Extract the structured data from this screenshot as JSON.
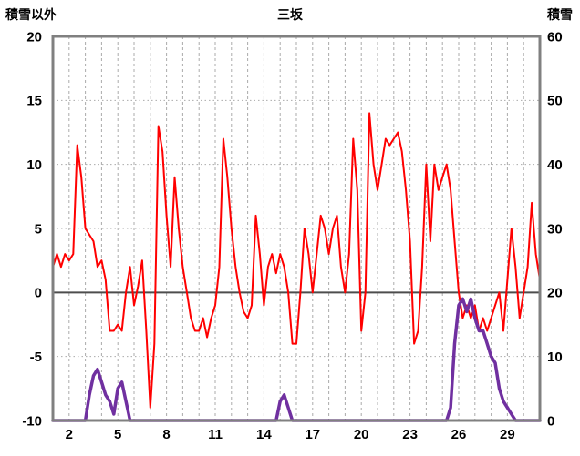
{
  "header": {
    "left_axis_title": "積雪以外",
    "chart_title": "三坂",
    "right_axis_title": "積雪"
  },
  "chart_data": {
    "type": "line",
    "title": "三坂",
    "x_range": [
      1,
      31
    ],
    "x_step": 0.25,
    "x_ticks": [
      2,
      5,
      8,
      11,
      14,
      17,
      20,
      23,
      26,
      29
    ],
    "left_axis": {
      "title": "積雪以外",
      "range": [
        -10,
        20
      ],
      "ticks": [
        20,
        15,
        10,
        5,
        0,
        -5,
        -10
      ]
    },
    "right_axis": {
      "title": "積雪",
      "range": [
        0,
        60
      ],
      "ticks": [
        60,
        50,
        40,
        30,
        20,
        10,
        0
      ]
    },
    "grid": {
      "vertical": "dashed, every day",
      "horizontal": "dotted, every tick",
      "zero_line": "solid at left-axis 0"
    },
    "colors": {
      "temperature": "#FF0000",
      "snow": "#7030A0",
      "frame": "#808080",
      "grid": "#ABABAB",
      "zero": "#4d4d4d"
    },
    "series": [
      {
        "name": "積雪以外",
        "axis": "left",
        "color": "#FF0000",
        "values": [
          2,
          3,
          2,
          3,
          2.5,
          3,
          11.5,
          9,
          5,
          4.5,
          4,
          2,
          2.5,
          1,
          -3,
          -3,
          -2.5,
          -3,
          0,
          2,
          -1,
          0.5,
          2.5,
          -3,
          -9,
          -4,
          13,
          11,
          6,
          2,
          9,
          5,
          2,
          0,
          -2,
          -3,
          -3,
          -2,
          -3.5,
          -2,
          -1,
          2,
          12,
          9,
          5,
          2,
          0,
          -1.5,
          -2,
          -1,
          6,
          3,
          -1,
          2,
          3,
          1.5,
          3,
          2,
          0,
          -4,
          -4,
          0,
          5,
          3,
          0,
          3,
          6,
          5,
          3,
          5,
          6,
          2,
          0,
          3,
          12,
          8,
          -3,
          0,
          14,
          10,
          8,
          10,
          12,
          11.5,
          12,
          12.5,
          11,
          8,
          4,
          -4,
          -3,
          2,
          10,
          4,
          10,
          8,
          9,
          10,
          8,
          4,
          0,
          -2,
          -1,
          -2,
          -1,
          -3,
          -2,
          -3,
          -2,
          -1,
          0,
          -3,
          1,
          5,
          2,
          -2,
          0,
          2,
          7,
          3,
          1
        ]
      },
      {
        "name": "積雪",
        "axis": "right",
        "color": "#7030A0",
        "values": [
          0,
          0,
          0,
          0,
          0,
          0,
          0,
          0,
          0,
          4,
          7,
          8,
          6,
          4,
          3,
          1,
          5,
          6,
          3,
          0,
          0,
          0,
          0,
          0,
          0,
          0,
          0,
          0,
          0,
          0,
          0,
          0,
          0,
          0,
          0,
          0,
          0,
          0,
          0,
          0,
          0,
          0,
          0,
          0,
          0,
          0,
          0,
          0,
          0,
          0,
          0,
          0,
          0,
          0,
          0,
          0,
          3,
          4,
          2,
          0,
          0,
          0,
          0,
          0,
          0,
          0,
          0,
          0,
          0,
          0,
          0,
          0,
          0,
          0,
          0,
          0,
          0,
          0,
          0,
          0,
          0,
          0,
          0,
          0,
          0,
          0,
          0,
          0,
          0,
          0,
          0,
          0,
          0,
          0,
          0,
          0,
          0,
          0,
          2,
          12,
          18,
          19,
          17,
          19,
          16,
          14,
          14,
          12,
          10,
          9,
          5,
          3,
          2,
          1,
          0,
          0,
          0,
          0,
          0,
          0,
          0
        ]
      }
    ]
  }
}
